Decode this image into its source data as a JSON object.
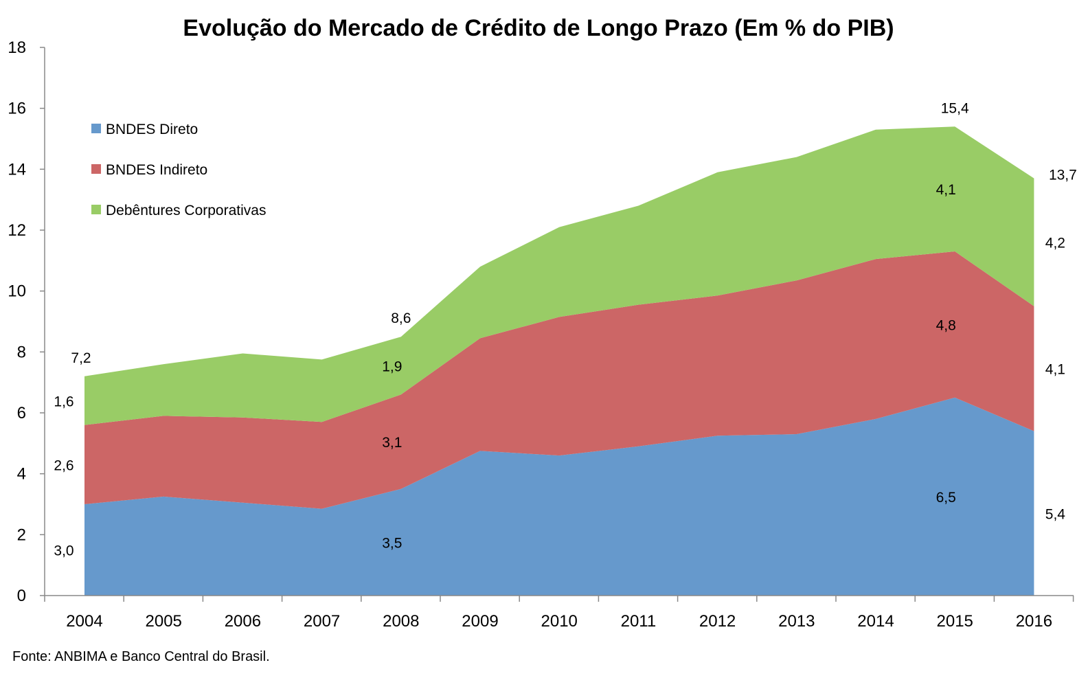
{
  "chart_data": {
    "type": "area",
    "stacked": true,
    "title": "Evolução do Mercado de Crédito de Longo Prazo (Em % do PIB)",
    "source": "Fonte: ANBIMA e Banco Central do Brasil.",
    "categories": [
      "2004",
      "2005",
      "2006",
      "2007",
      "2008",
      "2009",
      "2010",
      "2011",
      "2012",
      "2013",
      "2014",
      "2015",
      "2016"
    ],
    "ylim": [
      0,
      18
    ],
    "yticks": [
      "0",
      "2",
      "4",
      "6",
      "8",
      "10",
      "12",
      "14",
      "16",
      "18"
    ],
    "grid": false,
    "legend_position": "top-left",
    "series": [
      {
        "name": "BNDES Direto",
        "color": "#6699CC",
        "values": [
          3.0,
          3.25,
          3.05,
          2.85,
          3.5,
          4.75,
          4.6,
          4.9,
          5.25,
          5.3,
          5.8,
          6.5,
          5.4
        ]
      },
      {
        "name": "BNDES Indireto",
        "color": "#CC6666",
        "values": [
          2.6,
          2.65,
          2.8,
          2.85,
          3.1,
          3.7,
          4.55,
          4.65,
          4.6,
          5.05,
          5.25,
          4.8,
          4.1
        ]
      },
      {
        "name": "Debêntures Corporativas",
        "color": "#99CC66",
        "values": [
          1.6,
          1.7,
          2.1,
          2.05,
          1.9,
          2.35,
          2.95,
          3.25,
          4.05,
          4.05,
          4.25,
          4.1,
          4.2
        ]
      }
    ],
    "data_labels": [
      {
        "text": "3,0",
        "cat": 0,
        "series": 0
      },
      {
        "text": "2,6",
        "cat": 0,
        "series": 1
      },
      {
        "text": "1,6",
        "cat": 0,
        "series": 2
      },
      {
        "text": "7,2",
        "cat": 0,
        "series": "total"
      },
      {
        "text": "3,5",
        "cat": 4,
        "series": 0
      },
      {
        "text": "3,1",
        "cat": 4,
        "series": 1
      },
      {
        "text": "1,9",
        "cat": 4,
        "series": 2
      },
      {
        "text": "8,6",
        "cat": 4,
        "series": "total"
      },
      {
        "text": "6,5",
        "cat": 11,
        "series": 0
      },
      {
        "text": "4,8",
        "cat": 11,
        "series": 1
      },
      {
        "text": "4,1",
        "cat": 11,
        "series": 2
      },
      {
        "text": "15,4",
        "cat": 11,
        "series": "total"
      },
      {
        "text": "5,4",
        "cat": 12,
        "series": 0
      },
      {
        "text": "4,1",
        "cat": 12,
        "series": 1
      },
      {
        "text": "4,2",
        "cat": 12,
        "series": 2
      },
      {
        "text": "13,7",
        "cat": 12,
        "series": "total"
      }
    ]
  }
}
